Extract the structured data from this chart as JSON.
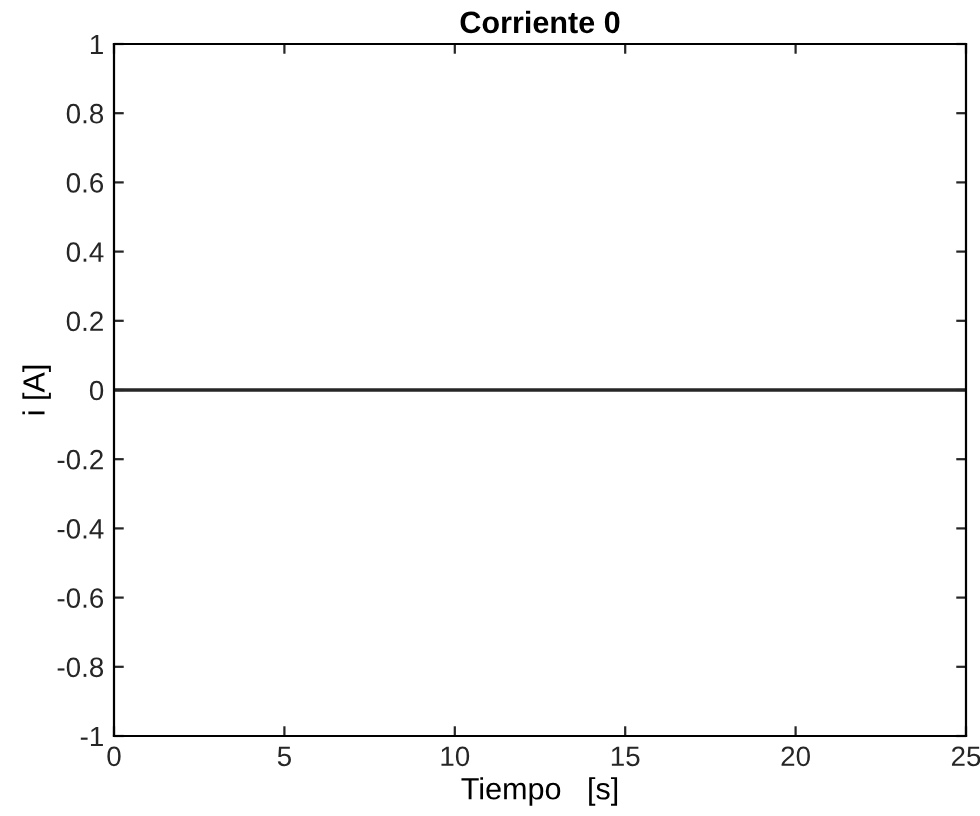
{
  "chart_data": {
    "type": "line",
    "title": "Corriente 0",
    "xlabel": "Tiempo   [s]",
    "ylabel": "i [A]",
    "series": [
      {
        "x": [
          0,
          25
        ],
        "values": [
          0,
          0
        ],
        "color": "#262626"
      }
    ],
    "xlim": [
      0,
      25
    ],
    "xticks": [
      0,
      5,
      10,
      15,
      20,
      25
    ],
    "ylim": [
      -1,
      1
    ],
    "yticks": [
      -1,
      -0.8,
      -0.6,
      -0.4,
      -0.2,
      0,
      0.2,
      0.4,
      0.6,
      0.8,
      1
    ],
    "grid": false,
    "legend": false,
    "marker": "none",
    "line_style": "solid"
  }
}
